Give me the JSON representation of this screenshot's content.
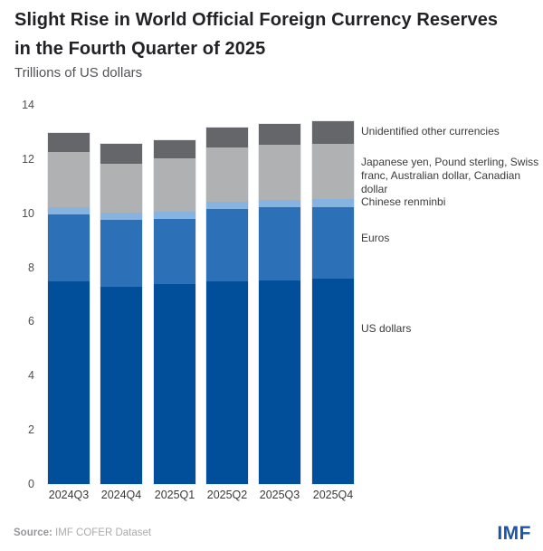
{
  "header": {
    "title": "Slight Rise in World Official Foreign Currency Reserves in the Fourth Quarter of 2025",
    "subtitle": "Trillions of US dollars"
  },
  "footer": {
    "source_label": "Source:",
    "source_text": "IMF COFER Dataset",
    "logo_text": "IMF",
    "logo_color": "#1b54aa"
  },
  "chart_data": {
    "type": "bar",
    "subtype": "stacked-vertical",
    "title": "Slight Rise in World Official Foreign Currency Reserves in the Fourth Quarter of 2025",
    "subtitle": "Trillions of US dollars",
    "xlabel": "",
    "ylabel": "Trillions of US dollars",
    "ylim": [
      0,
      14
    ],
    "yticks": [
      0,
      2,
      4,
      6,
      8,
      10,
      12,
      14
    ],
    "grid": false,
    "legend_position": "right",
    "categories": [
      "2024Q3",
      "2024Q4",
      "2025Q1",
      "2025Q2",
      "2025Q3",
      "2025Q4"
    ],
    "series": [
      {
        "name": "US dollars",
        "color": "#014f9a",
        "values": [
          7.5,
          7.27,
          7.4,
          7.5,
          7.53,
          7.6
        ]
      },
      {
        "name": "Euros",
        "color": "#2c71b7",
        "values": [
          2.47,
          2.5,
          2.4,
          2.67,
          2.7,
          2.63
        ]
      },
      {
        "name": "Chinese renminbi",
        "color": "#86b3e0",
        "values": [
          0.27,
          0.26,
          0.27,
          0.27,
          0.27,
          0.3
        ]
      },
      {
        "name": "Japanese yen, Pound sterling, Swiss franc, Australian dollar, Canadian dollar",
        "color": "#afb1b3",
        "values": [
          2.03,
          1.8,
          1.96,
          2.0,
          2.03,
          2.04
        ]
      },
      {
        "name": "Unidentified other currencies",
        "color": "#646669",
        "values": [
          0.7,
          0.74,
          0.67,
          0.73,
          0.77,
          0.83
        ]
      }
    ],
    "totals": [
      12.97,
      12.57,
      12.7,
      13.17,
      13.3,
      13.4
    ]
  }
}
